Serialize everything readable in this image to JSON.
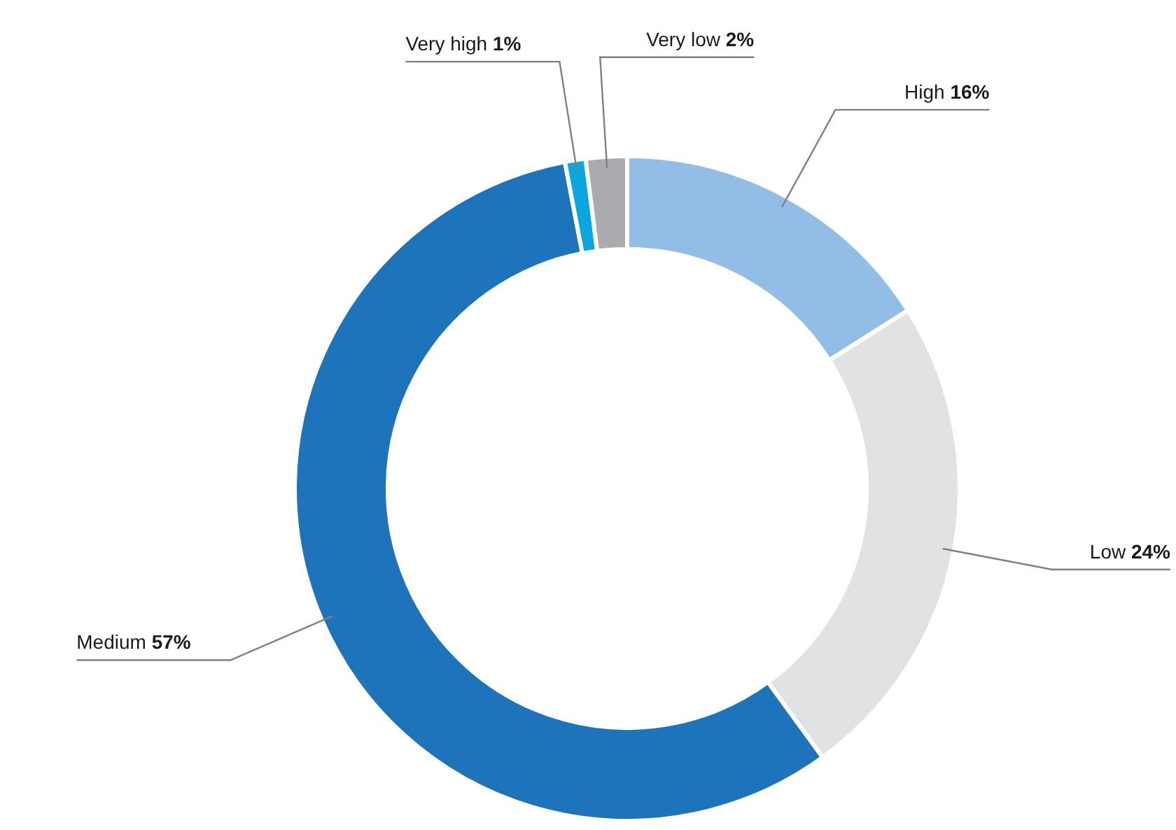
{
  "chart_data": {
    "type": "donut",
    "categories": [
      "High",
      "Low",
      "Medium",
      "Very high",
      "Very low"
    ],
    "values": [
      16,
      24,
      57,
      1,
      2
    ],
    "colors": [
      "#92bde6",
      "#e1e2e4",
      "#1e74bb",
      "#0aa6e0",
      "#a9abae"
    ],
    "value_labels": [
      "16%",
      "24%",
      "57%",
      "1%",
      "2%"
    ],
    "legend": false
  }
}
